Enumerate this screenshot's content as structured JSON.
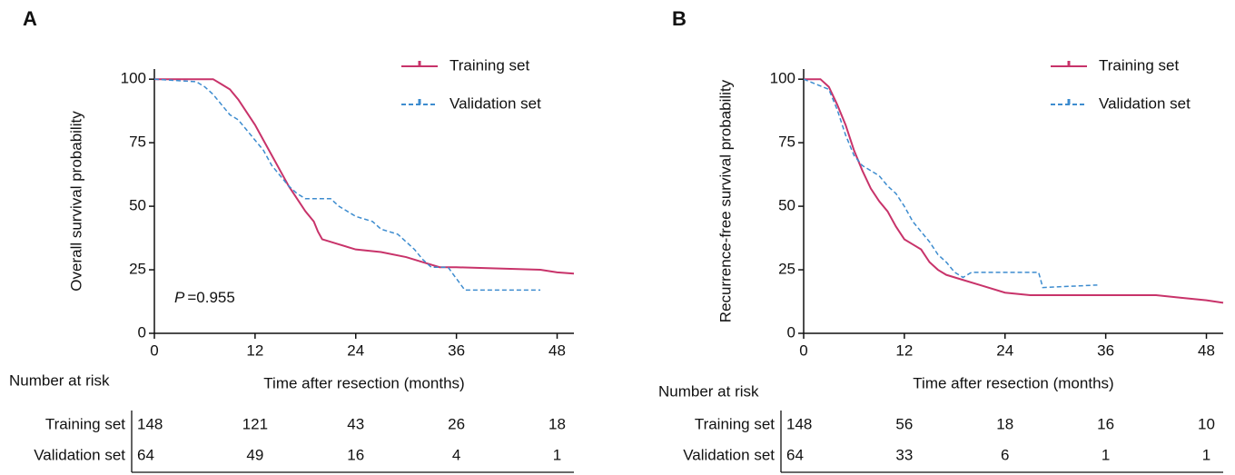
{
  "chart_data": [
    {
      "type": "line",
      "panel_label": "A",
      "xlabel": "Time after resection (months)",
      "ylabel": "Overall survival probability",
      "xlim": [
        0,
        50
      ],
      "ylim": [
        0,
        104
      ],
      "xticks": [
        0,
        12,
        24,
        36,
        48
      ],
      "yticks": [
        0,
        25,
        50,
        75,
        100
      ],
      "legend": "top-right",
      "annotation_symbol": "P",
      "annotation_value": "=0.955",
      "series": [
        {
          "name": "Training set",
          "color": "#c8336a",
          "dashed": false,
          "x": [
            0,
            7,
            8,
            9,
            10,
            11,
            12,
            13,
            14,
            15,
            16,
            17,
            18,
            19,
            19.5,
            20,
            22,
            24,
            27,
            30,
            32,
            34,
            36,
            46,
            48,
            50
          ],
          "values": [
            100,
            100,
            98,
            96,
            92,
            87,
            82,
            76,
            70,
            64,
            58,
            53,
            48,
            44,
            40,
            37,
            35,
            33,
            32,
            30,
            28,
            26,
            26,
            25,
            24,
            23.5
          ]
        },
        {
          "name": "Validation set",
          "color": "#3d8ccf",
          "dashed": true,
          "x": [
            0,
            5,
            6,
            7,
            8,
            9,
            10,
            11,
            12,
            13,
            14,
            15,
            16,
            17,
            18,
            21,
            22,
            23,
            24,
            26,
            27,
            29,
            30,
            31,
            32,
            33,
            35,
            37,
            46
          ],
          "values": [
            100,
            99,
            97,
            94,
            90,
            86,
            84,
            80,
            76,
            72,
            66,
            62,
            58,
            55,
            53,
            53,
            50,
            48,
            46,
            44,
            41,
            39,
            36,
            33,
            29,
            26,
            26,
            17,
            17
          ]
        }
      ],
      "risk_table": {
        "title": "Number at risk",
        "rows": [
          {
            "name": "Training set",
            "values": [
              148,
              121,
              43,
              26,
              18
            ]
          },
          {
            "name": "Validation set",
            "values": [
              64,
              49,
              16,
              4,
              1
            ]
          }
        ]
      }
    },
    {
      "type": "line",
      "panel_label": "B",
      "xlabel": "Time after resection (months)",
      "ylabel": "Recurrence-free survival probability",
      "xlim": [
        0,
        50
      ],
      "ylim": [
        0,
        104
      ],
      "xticks": [
        0,
        12,
        24,
        36,
        48
      ],
      "yticks": [
        0,
        25,
        50,
        75,
        100
      ],
      "legend": "top-right",
      "series": [
        {
          "name": "Training set",
          "color": "#c8336a",
          "dashed": false,
          "x": [
            0,
            2,
            3,
            4,
            5,
            6,
            7,
            8,
            9,
            10,
            11,
            12,
            13,
            14,
            15,
            16,
            17,
            19,
            21,
            24,
            27,
            36,
            42,
            45,
            48,
            50
          ],
          "values": [
            100,
            100,
            97,
            90,
            82,
            72,
            64,
            57,
            52,
            48,
            42,
            37,
            35,
            33,
            28,
            25,
            23,
            21,
            19,
            16,
            15,
            15,
            15,
            14,
            13,
            12
          ]
        },
        {
          "name": "Validation set",
          "color": "#3d8ccf",
          "dashed": true,
          "x": [
            0,
            3,
            4,
            5,
            6,
            7,
            9,
            10,
            11,
            12,
            13,
            14,
            15,
            16,
            17,
            18,
            19,
            20,
            28,
            28.5,
            35
          ],
          "values": [
            100,
            96,
            88,
            78,
            70,
            66,
            62,
            58,
            55,
            50,
            44,
            40,
            36,
            31,
            28,
            24,
            22,
            24,
            24,
            18,
            19
          ]
        }
      ],
      "risk_table": {
        "title": "Number at risk",
        "rows": [
          {
            "name": "Training set",
            "values": [
              148,
              56,
              18,
              16,
              10
            ]
          },
          {
            "name": "Validation set",
            "values": [
              64,
              33,
              6,
              1,
              1
            ]
          }
        ]
      }
    }
  ]
}
